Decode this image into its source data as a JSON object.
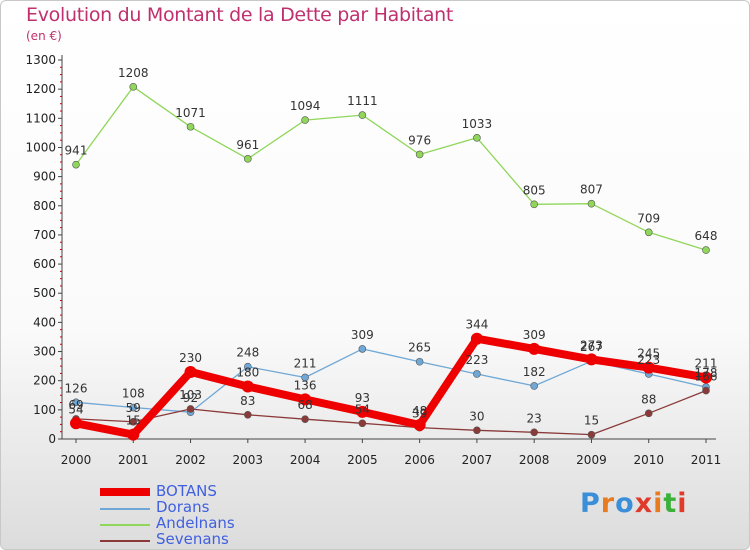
{
  "header": {
    "title": "Evolution du Montant de la Dette par Habitant",
    "subtitle": "(en €)"
  },
  "logo": {
    "text": "Proxiti",
    "colors": [
      "#3b8fd9",
      "#e87a1f",
      "#3b8fd9",
      "#e03a2a",
      "#e87a1f",
      "#3bb03b",
      "#e03a2a"
    ]
  },
  "chart_data": {
    "type": "line",
    "title": "Evolution du Montant de la Dette par Habitant",
    "subtitle": "(en €)",
    "categories": [
      "2000",
      "2001",
      "2002",
      "2003",
      "2004",
      "2005",
      "2006",
      "2007",
      "2008",
      "2009",
      "2010",
      "2011"
    ],
    "ylim": [
      0,
      1300
    ],
    "yticks": [
      0,
      100,
      200,
      300,
      400,
      500,
      600,
      700,
      800,
      900,
      1000,
      1100,
      1200,
      1300
    ],
    "grid": false,
    "legend_position": "bottom-left",
    "series": [
      {
        "name": "BOTANS",
        "color": "#ee0000",
        "width": 8,
        "marker": 6,
        "values": [
          54,
          15,
          230,
          180,
          136,
          93,
          48,
          344,
          309,
          273,
          245,
          211
        ]
      },
      {
        "name": "Dorans",
        "color": "#6fa8d6",
        "width": 1.3,
        "marker": 3.5,
        "values": [
          126,
          108,
          92,
          248,
          211,
          309,
          265,
          223,
          182,
          267,
          223,
          178
        ]
      },
      {
        "name": "Andelnans",
        "color": "#8fd65a",
        "width": 1.3,
        "marker": 3.5,
        "values": [
          941,
          1208,
          1071,
          961,
          1094,
          1111,
          976,
          1033,
          805,
          807,
          709,
          648
        ]
      },
      {
        "name": "Sevenans",
        "color": "#8b3a3a",
        "width": 1.3,
        "marker": 3.5,
        "values": [
          69,
          59,
          103,
          83,
          68,
          54,
          39,
          30,
          23,
          15,
          88,
          166
        ]
      }
    ]
  }
}
